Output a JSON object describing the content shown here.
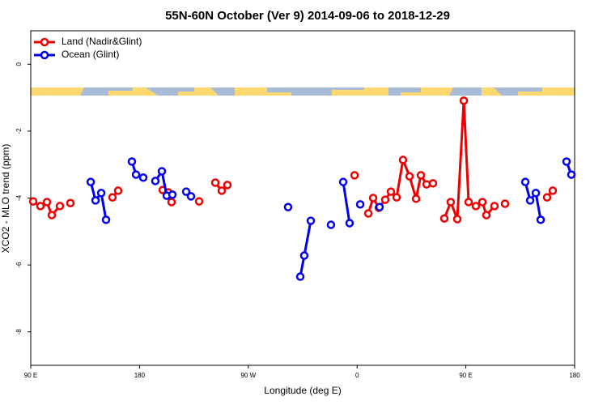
{
  "chart_data": {
    "type": "line",
    "title": "55N-60N October (Ver 9)   2014-09-06 to 2018-12-29",
    "xlabel": "Longitude (deg E)",
    "ylabel": "XCO2 - MLO trend (ppm)",
    "xlim": [
      90,
      540
    ],
    "ylim": [
      -9,
      1
    ],
    "xticks": [
      {
        "value": 90,
        "label": "90 E"
      },
      180,
      {
        "value": 270,
        "label": "90 W"
      },
      {
        "value": 360,
        "label": "0"
      },
      {
        "value": 450,
        "label": "90 E"
      },
      {
        "value": 540,
        "label": "180"
      }
    ],
    "yticks": [
      0,
      -2,
      -4,
      -6,
      -8
    ],
    "legend": "top-left",
    "series": [
      {
        "name": "Land (Nadir&Glint)",
        "color": "#ee0000",
        "x": [
          92,
          98,
          103.4,
          107.4,
          114.1,
          null,
          122.8,
          null,
          157.6,
          162.3,
          null,
          199.2,
          203.8,
          206.5,
          null,
          229.3,
          null,
          242.7,
          248.0,
          252.7,
          null,
          357.9,
          null,
          369.3,
          373.3,
          378.0,
          383.3,
          388.0,
          392.7,
          398.0,
          403.4,
          408.8,
          412.8,
          417.5,
          422.8,
          null,
          432.2,
          437.5,
          442.9,
          448.3,
          452.3,
          458.3,
          463.7,
          467.0,
          473.7,
          null,
          482.4,
          null,
          517.2,
          521.9
        ],
        "values": [
          -4.1,
          -4.24,
          -4.12,
          -4.51,
          -4.24,
          null,
          -4.15,
          null,
          -3.98,
          -3.78,
          null,
          -3.76,
          -3.83,
          -4.12,
          null,
          -4.1,
          null,
          -3.54,
          -3.78,
          -3.61,
          null,
          -3.32,
          null,
          -4.46,
          -4.0,
          -4.29,
          -4.05,
          -3.81,
          -3.98,
          -2.86,
          -3.35,
          -4.02,
          -3.32,
          -3.59,
          -3.56,
          null,
          -4.61,
          -4.12,
          -4.63,
          -1.09,
          -4.12,
          -4.24,
          -4.12,
          -4.51,
          -4.24,
          null,
          -4.17,
          null,
          -3.98,
          -3.78
        ]
      },
      {
        "name": "Ocean (Glint)",
        "color": "#0000ee",
        "x": [
          139.6,
          143.6,
          148.3,
          152.3,
          null,
          173.7,
          177.1,
          183.1,
          null,
          193.1,
          198.5,
          202.5,
          207.2,
          null,
          218.6,
          222.6,
          null,
          302.9,
          null,
          313.0,
          316.3,
          321.7,
          null,
          338.4,
          null,
          348.5,
          353.8,
          null,
          362.6,
          null,
          378.6,
          null,
          499.2,
          503.2,
          507.9,
          511.9,
          null,
          533.3,
          537.3
        ],
        "values": [
          -3.52,
          -4.07,
          -3.85,
          -4.65,
          null,
          -2.91,
          -3.3,
          -3.39,
          null,
          -3.49,
          -3.2,
          -3.93,
          -3.9,
          null,
          -3.81,
          -3.95,
          null,
          -4.27,
          null,
          -6.35,
          -5.72,
          -4.68,
          null,
          -4.8,
          null,
          -3.52,
          -4.75,
          null,
          -4.19,
          null,
          -4.27,
          null,
          -3.52,
          -4.07,
          -3.85,
          -4.65,
          null,
          -2.91,
          -3.3
        ]
      }
    ]
  }
}
